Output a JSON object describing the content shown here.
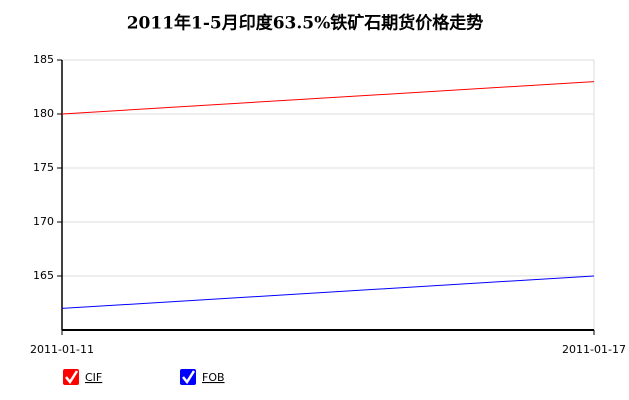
{
  "chart_data": {
    "type": "line",
    "title": "2011年1-5月印度63.5%铁矿石期货价格走势",
    "categories": [
      "2011-01-11",
      "2011-01-17"
    ],
    "series": [
      {
        "name": "CIF",
        "color": "#ff0000",
        "values": [
          180,
          183
        ]
      },
      {
        "name": "FOB",
        "color": "#0000ff",
        "values": [
          162,
          165
        ]
      }
    ],
    "ylim": [
      160,
      185
    ],
    "yticks": [
      165,
      170,
      175,
      180,
      185
    ],
    "grid": true
  }
}
